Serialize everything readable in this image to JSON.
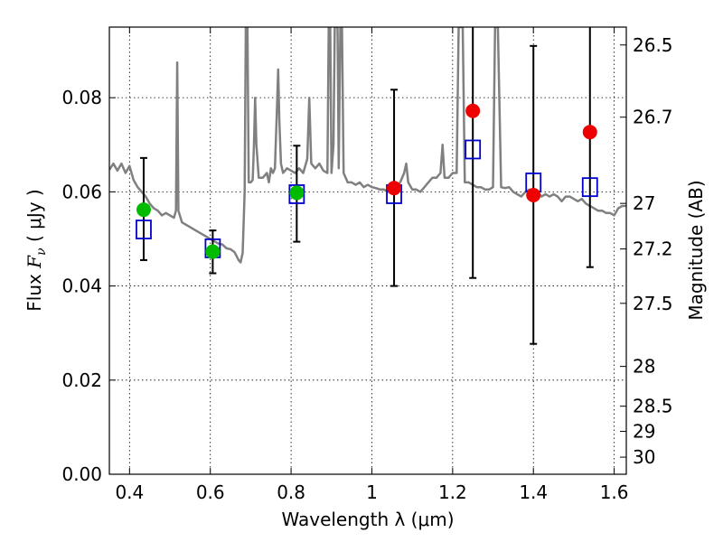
{
  "chart_data": {
    "type": "scatter",
    "xlabel": "Wavelength  λ (μm)",
    "ylabel_prefix": "Flux  ",
    "ylabel_symbol": "F",
    "ylabel_subscript": "ν",
    "ylabel_suffix": "  ( μJy )",
    "y2label": "Magnitude (AB)",
    "xlim": [
      0.35,
      1.63
    ],
    "ylim": [
      0.0,
      0.095
    ],
    "grid": true,
    "x_ticks": [
      {
        "value": 0.4,
        "label": "0.4"
      },
      {
        "value": 0.6,
        "label": "0.6"
      },
      {
        "value": 0.8,
        "label": "0.8"
      },
      {
        "value": 1.0,
        "label": "1"
      },
      {
        "value": 1.2,
        "label": "1.2"
      },
      {
        "value": 1.4,
        "label": "1.4"
      },
      {
        "value": 1.6,
        "label": "1.6"
      }
    ],
    "y_ticks": [
      {
        "value": 0.0,
        "label": "0.00"
      },
      {
        "value": 0.02,
        "label": "0.02"
      },
      {
        "value": 0.04,
        "label": "0.04"
      },
      {
        "value": 0.06,
        "label": "0.06"
      },
      {
        "value": 0.08,
        "label": "0.08"
      }
    ],
    "mag_ticks": [
      {
        "value": 26.5,
        "label": "26.5"
      },
      {
        "value": 26.7,
        "label": "26.7"
      },
      {
        "value": 27.0,
        "label": "27"
      },
      {
        "value": 27.2,
        "label": "27.2"
      },
      {
        "value": 27.5,
        "label": "27.5"
      },
      {
        "value": 28.0,
        "label": "28"
      },
      {
        "value": 28.5,
        "label": "28.5"
      },
      {
        "value": 29.0,
        "label": "29"
      },
      {
        "value": 30.0,
        "label": "30"
      }
    ],
    "colors": {
      "spectrum": "#808080",
      "green": "#00bb00",
      "red": "#ee0000",
      "model": "#0000cc",
      "errorbar": "#000000"
    },
    "model_fluxes": [
      {
        "x": 0.435,
        "y": 0.052
      },
      {
        "x": 0.606,
        "y": 0.048
      },
      {
        "x": 0.814,
        "y": 0.0595
      },
      {
        "x": 1.055,
        "y": 0.0595
      },
      {
        "x": 1.25,
        "y": 0.069
      },
      {
        "x": 1.4,
        "y": 0.062
      },
      {
        "x": 1.54,
        "y": 0.061
      }
    ],
    "observed_fluxes": [
      {
        "x": 0.435,
        "y": 0.0562,
        "yerr_low": 0.0455,
        "yerr_high": 0.0672,
        "band": "optical"
      },
      {
        "x": 0.606,
        "y": 0.0473,
        "yerr_low": 0.0427,
        "yerr_high": 0.0518,
        "band": "optical"
      },
      {
        "x": 0.814,
        "y": 0.0598,
        "yerr_low": 0.0494,
        "yerr_high": 0.0698,
        "band": "optical"
      },
      {
        "x": 1.055,
        "y": 0.0608,
        "yerr_low": 0.04,
        "yerr_high": 0.0817,
        "band": "ir"
      },
      {
        "x": 1.25,
        "y": 0.0772,
        "yerr_low": 0.0417,
        "yerr_high": 0.1,
        "band": "ir"
      },
      {
        "x": 1.4,
        "y": 0.0593,
        "yerr_low": 0.0277,
        "yerr_high": 0.091,
        "band": "ir"
      },
      {
        "x": 1.54,
        "y": 0.0727,
        "yerr_low": 0.044,
        "yerr_high": 0.1,
        "band": "ir"
      }
    ],
    "spectrum": [
      [
        0.35,
        0.0647
      ],
      [
        0.36,
        0.066
      ],
      [
        0.37,
        0.0645
      ],
      [
        0.38,
        0.066
      ],
      [
        0.39,
        0.064
      ],
      [
        0.4,
        0.0655
      ],
      [
        0.41,
        0.0625
      ],
      [
        0.42,
        0.061
      ],
      [
        0.43,
        0.06
      ],
      [
        0.44,
        0.059
      ],
      [
        0.45,
        0.0575
      ],
      [
        0.46,
        0.0565
      ],
      [
        0.47,
        0.056
      ],
      [
        0.48,
        0.055
      ],
      [
        0.49,
        0.0555
      ],
      [
        0.5,
        0.055
      ],
      [
        0.51,
        0.0545
      ],
      [
        0.515,
        0.056
      ],
      [
        0.518,
        0.0875
      ],
      [
        0.521,
        0.056
      ],
      [
        0.53,
        0.0535
      ],
      [
        0.54,
        0.053
      ],
      [
        0.55,
        0.0525
      ],
      [
        0.56,
        0.052
      ],
      [
        0.57,
        0.0515
      ],
      [
        0.58,
        0.051
      ],
      [
        0.59,
        0.0505
      ],
      [
        0.6,
        0.05
      ],
      [
        0.61,
        0.0495
      ],
      [
        0.62,
        0.049
      ],
      [
        0.63,
        0.0488
      ],
      [
        0.64,
        0.048
      ],
      [
        0.65,
        0.0478
      ],
      [
        0.66,
        0.0472
      ],
      [
        0.67,
        0.0455
      ],
      [
        0.675,
        0.045
      ],
      [
        0.68,
        0.047
      ],
      [
        0.685,
        0.06
      ],
      [
        0.688,
        0.095
      ],
      [
        0.692,
        0.095
      ],
      [
        0.695,
        0.062
      ],
      [
        0.7,
        0.062
      ],
      [
        0.705,
        0.0625
      ],
      [
        0.708,
        0.07
      ],
      [
        0.711,
        0.08
      ],
      [
        0.714,
        0.07
      ],
      [
        0.72,
        0.063
      ],
      [
        0.73,
        0.063
      ],
      [
        0.74,
        0.064
      ],
      [
        0.745,
        0.062
      ],
      [
        0.75,
        0.065
      ],
      [
        0.755,
        0.064
      ],
      [
        0.76,
        0.065
      ],
      [
        0.765,
        0.078
      ],
      [
        0.768,
        0.086
      ],
      [
        0.771,
        0.075
      ],
      [
        0.775,
        0.066
      ],
      [
        0.78,
        0.064
      ],
      [
        0.79,
        0.065
      ],
      [
        0.8,
        0.0645
      ],
      [
        0.81,
        0.064
      ],
      [
        0.82,
        0.065
      ],
      [
        0.83,
        0.064
      ],
      [
        0.84,
        0.067
      ],
      [
        0.845,
        0.08
      ],
      [
        0.85,
        0.066
      ],
      [
        0.86,
        0.065
      ],
      [
        0.87,
        0.066
      ],
      [
        0.88,
        0.0645
      ],
      [
        0.89,
        0.064
      ],
      [
        0.893,
        0.095
      ],
      [
        0.897,
        0.095
      ],
      [
        0.9,
        0.064
      ],
      [
        0.905,
        0.07
      ],
      [
        0.908,
        0.095
      ],
      [
        0.915,
        0.095
      ],
      [
        0.918,
        0.065
      ],
      [
        0.922,
        0.095
      ],
      [
        0.926,
        0.095
      ],
      [
        0.93,
        0.064
      ],
      [
        0.94,
        0.062
      ],
      [
        0.95,
        0.062
      ],
      [
        0.96,
        0.0615
      ],
      [
        0.97,
        0.062
      ],
      [
        0.98,
        0.061
      ],
      [
        0.99,
        0.0615
      ],
      [
        1.0,
        0.061
      ],
      [
        1.01,
        0.0608
      ],
      [
        1.02,
        0.0605
      ],
      [
        1.03,
        0.0605
      ],
      [
        1.04,
        0.06
      ],
      [
        1.05,
        0.0605
      ],
      [
        1.06,
        0.061
      ],
      [
        1.07,
        0.062
      ],
      [
        1.08,
        0.064
      ],
      [
        1.085,
        0.066
      ],
      [
        1.09,
        0.062
      ],
      [
        1.1,
        0.0605
      ],
      [
        1.11,
        0.0605
      ],
      [
        1.12,
        0.06
      ],
      [
        1.13,
        0.061
      ],
      [
        1.14,
        0.062
      ],
      [
        1.15,
        0.063
      ],
      [
        1.16,
        0.063
      ],
      [
        1.17,
        0.064
      ],
      [
        1.175,
        0.07
      ],
      [
        1.18,
        0.063
      ],
      [
        1.19,
        0.063
      ],
      [
        1.2,
        0.064
      ],
      [
        1.21,
        0.064
      ],
      [
        1.215,
        0.095
      ],
      [
        1.225,
        0.095
      ],
      [
        1.23,
        0.062
      ],
      [
        1.24,
        0.062
      ],
      [
        1.25,
        0.0615
      ],
      [
        1.26,
        0.061
      ],
      [
        1.27,
        0.061
      ],
      [
        1.28,
        0.0605
      ],
      [
        1.29,
        0.0605
      ],
      [
        1.3,
        0.061
      ],
      [
        1.305,
        0.095
      ],
      [
        1.312,
        0.095
      ],
      [
        1.32,
        0.061
      ],
      [
        1.33,
        0.0608
      ],
      [
        1.34,
        0.061
      ],
      [
        1.35,
        0.06
      ],
      [
        1.36,
        0.0595
      ],
      [
        1.37,
        0.059
      ],
      [
        1.38,
        0.06
      ],
      [
        1.39,
        0.0605
      ],
      [
        1.4,
        0.06
      ],
      [
        1.41,
        0.06
      ],
      [
        1.42,
        0.059
      ],
      [
        1.43,
        0.0595
      ],
      [
        1.44,
        0.059
      ],
      [
        1.45,
        0.0595
      ],
      [
        1.46,
        0.059
      ],
      [
        1.47,
        0.058
      ],
      [
        1.48,
        0.059
      ],
      [
        1.49,
        0.059
      ],
      [
        1.5,
        0.0585
      ],
      [
        1.51,
        0.058
      ],
      [
        1.52,
        0.0585
      ],
      [
        1.53,
        0.0575
      ],
      [
        1.54,
        0.057
      ],
      [
        1.55,
        0.0565
      ],
      [
        1.56,
        0.056
      ],
      [
        1.57,
        0.056
      ],
      [
        1.58,
        0.0555
      ],
      [
        1.59,
        0.0555
      ],
      [
        1.6,
        0.055
      ],
      [
        1.61,
        0.0565
      ],
      [
        1.62,
        0.057
      ],
      [
        1.63,
        0.057
      ]
    ]
  }
}
